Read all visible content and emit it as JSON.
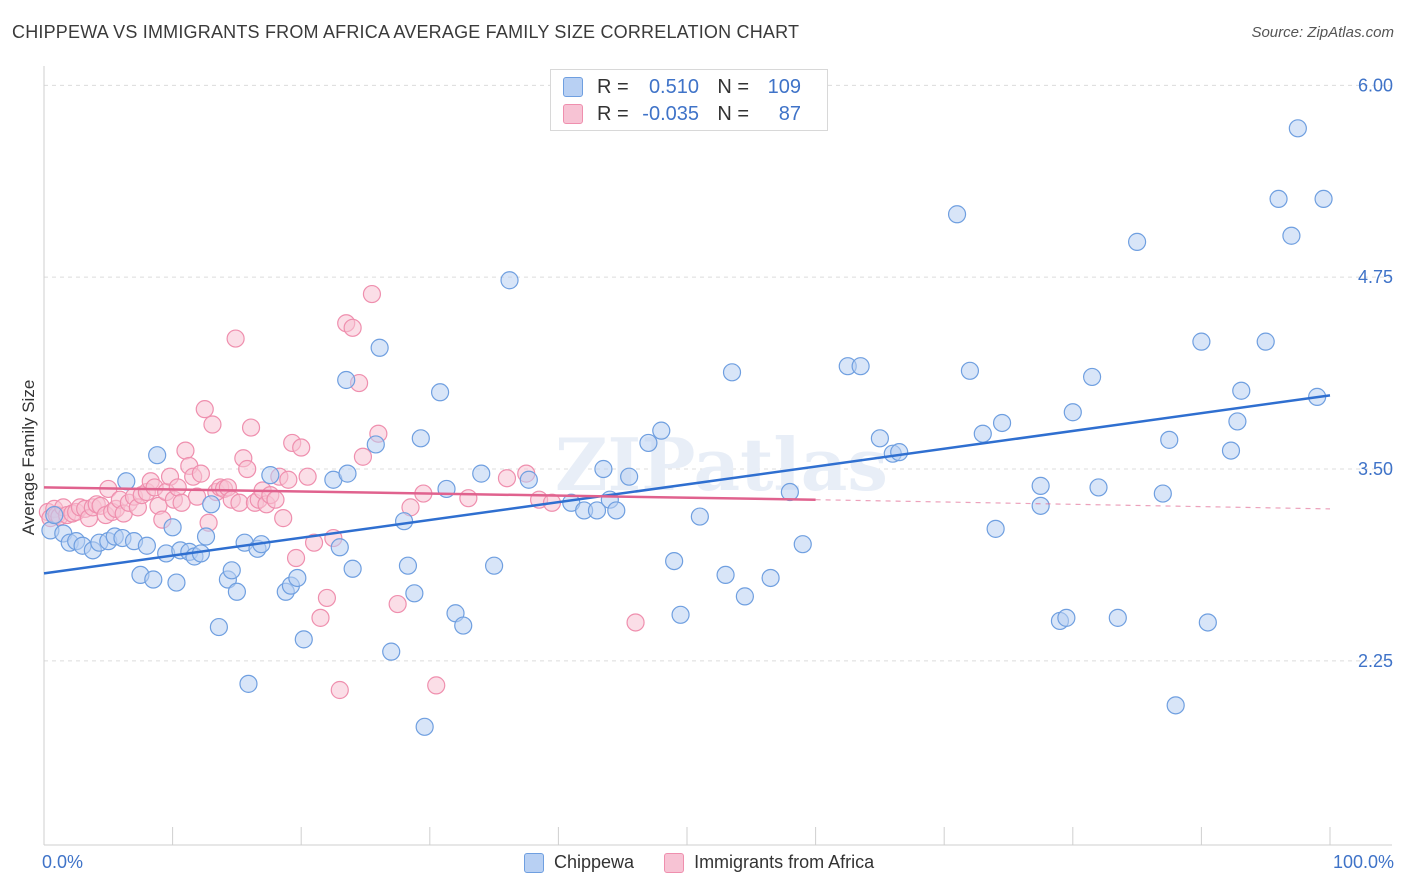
{
  "title": "CHIPPEWA VS IMMIGRANTS FROM AFRICA AVERAGE FAMILY SIZE CORRELATION CHART",
  "source": "Source: ZipAtlas.com",
  "watermark": "ZIPatlas",
  "stats": {
    "row1": {
      "r_label": "R =",
      "r_value": "0.510",
      "n_label": "N =",
      "n_value": "109"
    },
    "row2": {
      "r_label": "R =",
      "r_value": "-0.035",
      "n_label": "N =",
      "n_value": "87"
    }
  },
  "legend": {
    "series1": "Chippewa",
    "series2": "Immigrants from Africa"
  },
  "colors": {
    "blue": "#6f9fe0",
    "blue_fill": "#b8d0f3",
    "blue_line": "#2f6fd0",
    "pink": "#ef8fae",
    "pink_fill": "#f7c3d4",
    "pink_line": "#e0628e",
    "axis_text": "#3f73c8"
  },
  "chart_data": {
    "type": "scatter",
    "title": "CHIPPEWA VS IMMIGRANTS FROM AFRICA AVERAGE FAMILY SIZE CORRELATION CHART",
    "xlabel": "",
    "ylabel": "Average Family Size",
    "x_tick_labels": [
      "0.0%",
      "100.0%"
    ],
    "y_ticks": [
      2.25,
      3.5,
      4.75,
      6.0
    ],
    "y_tick_labels": [
      "2.25",
      "3.50",
      "4.75",
      "6.00"
    ],
    "xlim": [
      0,
      100
    ],
    "ylim": [
      1.05,
      6.1
    ],
    "grid": "horizontal dashed",
    "series": [
      {
        "name": "Chippewa",
        "points": [
          [
            0.5,
            3.1
          ],
          [
            0.8,
            3.2
          ],
          [
            1.5,
            3.08
          ],
          [
            2.0,
            3.02
          ],
          [
            2.5,
            3.03
          ],
          [
            3.0,
            3.0
          ],
          [
            3.8,
            2.97
          ],
          [
            4.3,
            3.02
          ],
          [
            5.0,
            3.03
          ],
          [
            5.5,
            3.06
          ],
          [
            6.1,
            3.05
          ],
          [
            6.4,
            3.42
          ],
          [
            7.0,
            3.03
          ],
          [
            7.5,
            2.81
          ],
          [
            8.0,
            3.0
          ],
          [
            8.5,
            2.78
          ],
          [
            8.8,
            3.59
          ],
          [
            9.5,
            2.95
          ],
          [
            10.0,
            3.12
          ],
          [
            10.3,
            2.76
          ],
          [
            10.6,
            2.97
          ],
          [
            11.3,
            2.96
          ],
          [
            11.7,
            2.93
          ],
          [
            12.2,
            2.95
          ],
          [
            12.6,
            3.06
          ],
          [
            13.0,
            3.27
          ],
          [
            13.6,
            2.47
          ],
          [
            14.3,
            2.78
          ],
          [
            14.6,
            2.84
          ],
          [
            15.0,
            2.7
          ],
          [
            15.6,
            3.02
          ],
          [
            15.9,
            2.1
          ],
          [
            16.6,
            2.98
          ],
          [
            16.9,
            3.01
          ],
          [
            17.6,
            3.46
          ],
          [
            18.8,
            2.7
          ],
          [
            19.2,
            2.74
          ],
          [
            19.7,
            2.79
          ],
          [
            20.2,
            2.39
          ],
          [
            22.5,
            3.43
          ],
          [
            23.0,
            2.99
          ],
          [
            23.5,
            4.08
          ],
          [
            23.6,
            3.47
          ],
          [
            24.0,
            2.85
          ],
          [
            25.8,
            3.66
          ],
          [
            26.1,
            4.29
          ],
          [
            27.0,
            2.31
          ],
          [
            28.0,
            3.16
          ],
          [
            28.3,
            2.87
          ],
          [
            28.8,
            2.69
          ],
          [
            29.3,
            3.7
          ],
          [
            29.6,
            1.82
          ],
          [
            30.8,
            4.0
          ],
          [
            31.3,
            3.37
          ],
          [
            32.0,
            2.56
          ],
          [
            32.6,
            2.48
          ],
          [
            34.0,
            3.47
          ],
          [
            35.0,
            2.87
          ],
          [
            36.2,
            4.73
          ],
          [
            37.7,
            3.43
          ],
          [
            41.0,
            3.28
          ],
          [
            42.0,
            3.23
          ],
          [
            43.0,
            3.23
          ],
          [
            43.5,
            3.5
          ],
          [
            44.0,
            3.3
          ],
          [
            44.5,
            3.23
          ],
          [
            45.5,
            3.45
          ],
          [
            47.0,
            3.67
          ],
          [
            48.0,
            3.75
          ],
          [
            49.0,
            2.9
          ],
          [
            49.5,
            2.55
          ],
          [
            51.0,
            3.19
          ],
          [
            53.0,
            2.81
          ],
          [
            53.5,
            4.13
          ],
          [
            54.5,
            2.67
          ],
          [
            56.5,
            2.79
          ],
          [
            58.0,
            3.35
          ],
          [
            59.0,
            3.01
          ],
          [
            62.5,
            4.17
          ],
          [
            63.5,
            4.17
          ],
          [
            65.0,
            3.7
          ],
          [
            66.0,
            3.6
          ],
          [
            66.5,
            3.61
          ],
          [
            71.0,
            5.16
          ],
          [
            72.0,
            4.14
          ],
          [
            73.0,
            3.73
          ],
          [
            74.0,
            3.11
          ],
          [
            74.5,
            3.8
          ],
          [
            77.5,
            3.39
          ],
          [
            77.5,
            3.26
          ],
          [
            79.0,
            2.51
          ],
          [
            79.5,
            2.53
          ],
          [
            80.0,
            3.87
          ],
          [
            81.5,
            4.1
          ],
          [
            82.0,
            3.38
          ],
          [
            83.5,
            2.53
          ],
          [
            85.0,
            4.98
          ],
          [
            87.0,
            3.34
          ],
          [
            87.5,
            3.69
          ],
          [
            88.0,
            1.96
          ],
          [
            90.0,
            4.33
          ],
          [
            90.5,
            2.5
          ],
          [
            92.3,
            3.62
          ],
          [
            92.8,
            3.81
          ],
          [
            93.1,
            4.01
          ],
          [
            95.0,
            4.33
          ],
          [
            96.0,
            5.26
          ],
          [
            97.0,
            5.02
          ],
          [
            97.5,
            5.72
          ],
          [
            99.0,
            3.97
          ],
          [
            99.5,
            5.26
          ]
        ],
        "trend": {
          "x": [
            0,
            100
          ],
          "y": [
            2.82,
            3.98
          ]
        }
      },
      {
        "name": "Immigrants from Africa",
        "points": [
          [
            0.3,
            3.22
          ],
          [
            0.5,
            3.18
          ],
          [
            0.8,
            3.24
          ],
          [
            1.0,
            3.2
          ],
          [
            1.2,
            3.19
          ],
          [
            1.5,
            3.25
          ],
          [
            1.8,
            3.2
          ],
          [
            2.2,
            3.21
          ],
          [
            2.5,
            3.22
          ],
          [
            2.8,
            3.25
          ],
          [
            3.2,
            3.24
          ],
          [
            3.5,
            3.18
          ],
          [
            3.8,
            3.25
          ],
          [
            4.1,
            3.27
          ],
          [
            4.4,
            3.26
          ],
          [
            4.8,
            3.2
          ],
          [
            5.0,
            3.37
          ],
          [
            5.3,
            3.22
          ],
          [
            5.6,
            3.24
          ],
          [
            5.9,
            3.3
          ],
          [
            6.2,
            3.21
          ],
          [
            6.6,
            3.28
          ],
          [
            7.0,
            3.32
          ],
          [
            7.3,
            3.25
          ],
          [
            7.6,
            3.33
          ],
          [
            8.0,
            3.35
          ],
          [
            8.3,
            3.42
          ],
          [
            8.6,
            3.38
          ],
          [
            8.9,
            3.26
          ],
          [
            9.2,
            3.17
          ],
          [
            9.5,
            3.35
          ],
          [
            9.8,
            3.45
          ],
          [
            10.1,
            3.3
          ],
          [
            10.4,
            3.38
          ],
          [
            10.7,
            3.28
          ],
          [
            11.0,
            3.62
          ],
          [
            11.3,
            3.52
          ],
          [
            11.6,
            3.45
          ],
          [
            11.9,
            3.32
          ],
          [
            12.2,
            3.47
          ],
          [
            12.5,
            3.89
          ],
          [
            12.8,
            3.15
          ],
          [
            13.1,
            3.79
          ],
          [
            13.4,
            3.35
          ],
          [
            13.7,
            3.38
          ],
          [
            14.0,
            3.37
          ],
          [
            14.3,
            3.38
          ],
          [
            14.6,
            3.3
          ],
          [
            14.9,
            4.35
          ],
          [
            15.2,
            3.28
          ],
          [
            15.5,
            3.57
          ],
          [
            15.8,
            3.5
          ],
          [
            16.1,
            3.77
          ],
          [
            16.4,
            3.28
          ],
          [
            16.7,
            3.3
          ],
          [
            17.0,
            3.36
          ],
          [
            17.3,
            3.27
          ],
          [
            17.6,
            3.33
          ],
          [
            18.0,
            3.3
          ],
          [
            18.3,
            3.45
          ],
          [
            18.6,
            3.18
          ],
          [
            19.0,
            3.43
          ],
          [
            19.3,
            3.67
          ],
          [
            19.6,
            2.92
          ],
          [
            20.0,
            3.64
          ],
          [
            20.5,
            3.45
          ],
          [
            21.0,
            3.02
          ],
          [
            21.5,
            2.53
          ],
          [
            22.0,
            2.66
          ],
          [
            22.5,
            3.05
          ],
          [
            23.0,
            2.06
          ],
          [
            23.5,
            4.45
          ],
          [
            24.0,
            4.42
          ],
          [
            24.5,
            4.06
          ],
          [
            24.8,
            3.58
          ],
          [
            25.5,
            4.64
          ],
          [
            26.0,
            3.73
          ],
          [
            27.5,
            2.62
          ],
          [
            28.5,
            3.25
          ],
          [
            29.5,
            3.34
          ],
          [
            30.5,
            2.09
          ],
          [
            33.0,
            3.31
          ],
          [
            36.0,
            3.44
          ],
          [
            37.5,
            3.47
          ],
          [
            38.5,
            3.3
          ],
          [
            39.5,
            3.28
          ],
          [
            46.0,
            2.5
          ]
        ],
        "trend": {
          "x": [
            0,
            60
          ],
          "y": [
            3.38,
            3.3
          ]
        },
        "trend_dashed": {
          "x": [
            60,
            100
          ],
          "y": [
            3.3,
            3.24
          ]
        }
      }
    ]
  }
}
